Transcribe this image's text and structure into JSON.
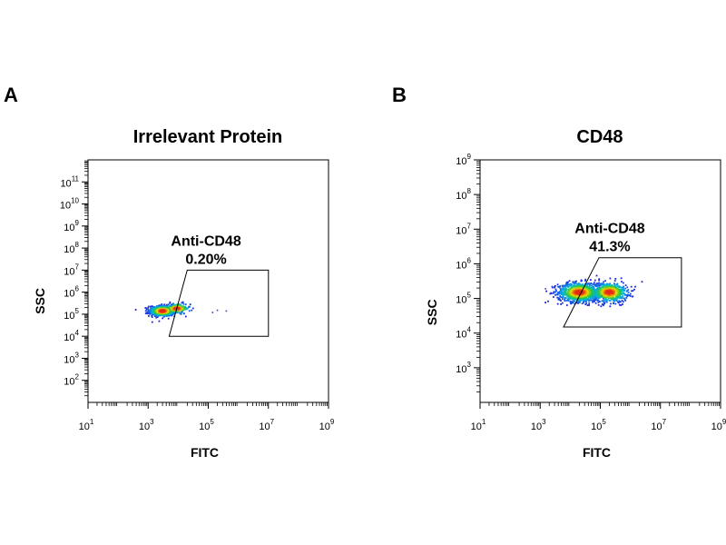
{
  "chart_data": [
    {
      "type": "scatter",
      "panel": "A",
      "title": "Irrelevant Protein",
      "xlabel": "FITC",
      "ylabel": "SSC",
      "x_scale": "log",
      "y_scale": "log",
      "xlim": [
        10,
        1000000000
      ],
      "ylim": [
        10,
        1000000000000
      ],
      "x_ticks": [
        {
          "base": "10",
          "exp": "1",
          "value": 10
        },
        {
          "base": "10",
          "exp": "3",
          "value": 1000
        },
        {
          "base": "10",
          "exp": "5",
          "value": 100000
        },
        {
          "base": "10",
          "exp": "7",
          "value": 10000000
        },
        {
          "base": "10",
          "exp": "9",
          "value": 1000000000
        }
      ],
      "y_ticks": [
        {
          "base": "10",
          "exp": "2",
          "value": 100
        },
        {
          "base": "10",
          "exp": "3",
          "value": 1000
        },
        {
          "base": "10",
          "exp": "4",
          "value": 10000
        },
        {
          "base": "10",
          "exp": "5",
          "value": 100000
        },
        {
          "base": "10",
          "exp": "6",
          "value": 1000000
        },
        {
          "base": "10",
          "exp": "7",
          "value": 10000000
        },
        {
          "base": "10",
          "exp": "8",
          "value": 100000000
        },
        {
          "base": "10",
          "exp": "9",
          "value": 1000000000
        },
        {
          "base": "10",
          "exp": "10",
          "value": 10000000000
        },
        {
          "base": "10",
          "exp": "11",
          "value": 100000000000
        }
      ],
      "gate": {
        "label": "Anti-CD48",
        "percent": "0.20%",
        "polygon": [
          [
            20000,
            10000000
          ],
          [
            10000000,
            10000000
          ],
          [
            10000000,
            10000
          ],
          [
            5000,
            10000
          ]
        ]
      },
      "clusters": [
        {
          "center": [
            3000,
            140000
          ],
          "spread": [
            0.22,
            0.12
          ],
          "count": 650
        },
        {
          "center": [
            9000,
            180000
          ],
          "spread": [
            0.22,
            0.12
          ],
          "count": 150
        }
      ],
      "outliers": [
        [
          200000,
          150000
        ],
        [
          400000,
          140000
        ],
        [
          140000,
          120000
        ]
      ]
    },
    {
      "type": "scatter",
      "panel": "B",
      "title": "CD48",
      "xlabel": "FITC",
      "ylabel": "SSC",
      "x_scale": "log",
      "y_scale": "log",
      "xlim": [
        10,
        1000000000
      ],
      "ylim": [
        100,
        1000000000
      ],
      "x_ticks": [
        {
          "base": "10",
          "exp": "1",
          "value": 10
        },
        {
          "base": "10",
          "exp": "3",
          "value": 1000
        },
        {
          "base": "10",
          "exp": "5",
          "value": 100000
        },
        {
          "base": "10",
          "exp": "7",
          "value": 10000000
        },
        {
          "base": "10",
          "exp": "9",
          "value": 1000000000
        }
      ],
      "y_ticks": [
        {
          "base": "10",
          "exp": "3",
          "value": 1000
        },
        {
          "base": "10",
          "exp": "4",
          "value": 10000
        },
        {
          "base": "10",
          "exp": "5",
          "value": 100000
        },
        {
          "base": "10",
          "exp": "6",
          "value": 1000000
        },
        {
          "base": "10",
          "exp": "7",
          "value": 10000000
        },
        {
          "base": "10",
          "exp": "8",
          "value": 100000000
        },
        {
          "base": "10",
          "exp": "9",
          "value": 1000000000
        }
      ],
      "gate": {
        "label": "Anti-CD48",
        "percent": "41.3%",
        "polygon": [
          [
            90000,
            1500000
          ],
          [
            50000000,
            1500000
          ],
          [
            50000000,
            15000
          ],
          [
            6000,
            15000
          ]
        ]
      },
      "clusters": [
        {
          "center": [
            20000,
            150000
          ],
          "spread": [
            0.35,
            0.14
          ],
          "count": 900
        },
        {
          "center": [
            200000,
            150000
          ],
          "spread": [
            0.3,
            0.14
          ],
          "count": 650
        }
      ],
      "outliers": [
        [
          1500,
          190000
        ],
        [
          2500,
          220000
        ]
      ]
    }
  ]
}
